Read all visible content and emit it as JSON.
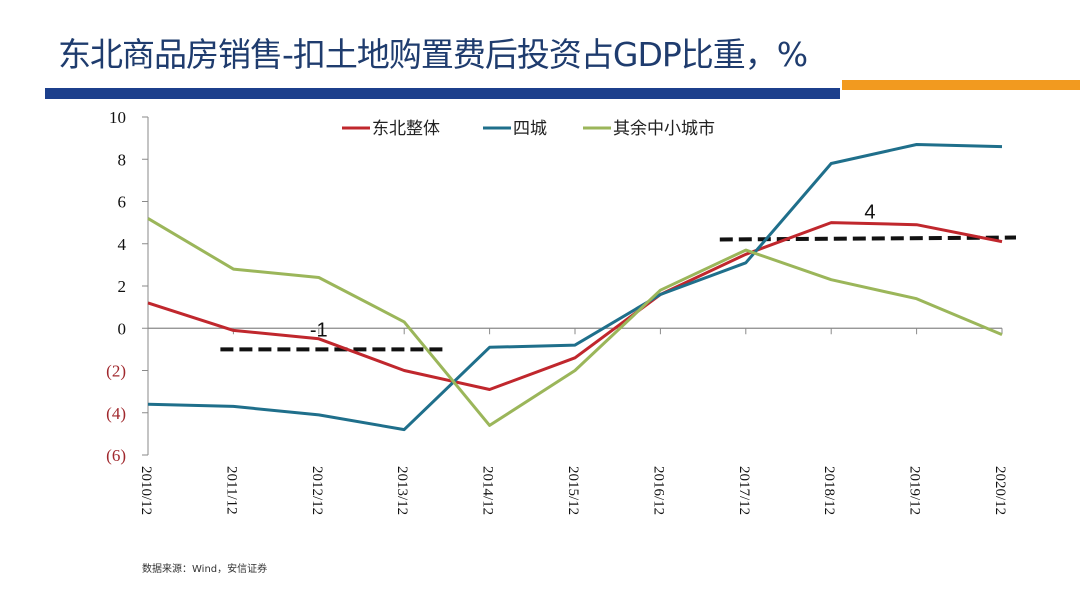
{
  "header": {
    "title": "东北商品房销售-扣土地购置费后投资占GDP比重，%",
    "accent_colors": {
      "bar_primary": "#1c3f8c",
      "bar_secondary": "#f29a1f",
      "title": "#1f3c6e"
    }
  },
  "footer": {
    "source": "数据来源：Wind，安信证券"
  },
  "chart_data": {
    "type": "line",
    "title": "东北商品房销售-扣土地购置费后投资占GDP比重，%",
    "xlabel": "",
    "ylabel": "",
    "categories": [
      "2010/12",
      "2011/12",
      "2012/12",
      "2013/12",
      "2014/12",
      "2015/12",
      "2016/12",
      "2017/12",
      "2018/12",
      "2019/12",
      "2020/12"
    ],
    "ylim": [
      -6,
      10
    ],
    "yticks": [
      10,
      8,
      6,
      4,
      2,
      0,
      -2,
      -4,
      -6
    ],
    "ytick_labels": [
      "10",
      "8",
      "6",
      "4",
      "2",
      "0",
      "(2)",
      "(4)",
      "(6)"
    ],
    "negative_tick_color": "#a0282d",
    "grid": false,
    "legend_position": "top",
    "series": [
      {
        "name": "东北整体",
        "color": "#c0272d",
        "values": [
          1.2,
          -0.1,
          -0.5,
          -2.0,
          -2.9,
          -1.4,
          1.6,
          3.5,
          5.0,
          4.9,
          4.1
        ]
      },
      {
        "name": "四城",
        "color": "#1f6f8b",
        "values": [
          -3.6,
          -3.7,
          -4.1,
          -4.8,
          -0.9,
          -0.8,
          1.6,
          3.1,
          7.8,
          8.7,
          8.6
        ]
      },
      {
        "name": "其余中小城市",
        "color": "#9bb65a",
        "values": [
          5.2,
          2.8,
          2.4,
          0.3,
          -4.6,
          -2.0,
          1.8,
          3.7,
          2.3,
          1.4,
          -0.3
        ]
      }
    ],
    "annotations": [
      {
        "text": "-1",
        "value": -1,
        "from": "2011/12",
        "to": "2013/12",
        "style": "dashed"
      },
      {
        "text": "4",
        "value": 4.2,
        "from": "2017/12",
        "to": "2020/12",
        "style": "dashed"
      }
    ]
  }
}
